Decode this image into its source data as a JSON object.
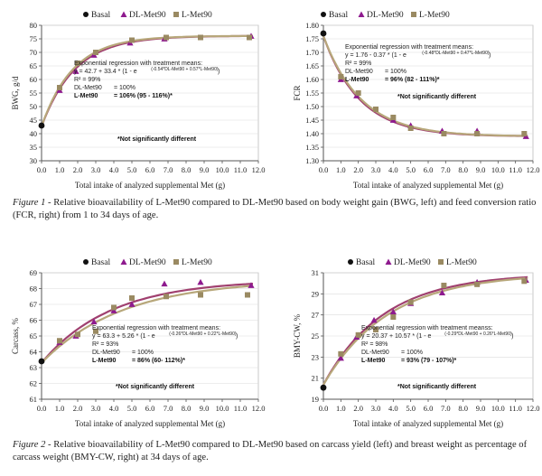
{
  "legend": [
    "Basal",
    "DL-Met90",
    "L-Met90"
  ],
  "colors": {
    "basal": "#111111",
    "dl": "#8e1a8e",
    "l": "#9a8a62",
    "curve": "#a0406f",
    "curve2": "#b7a77a",
    "grid": "#dcdcdc",
    "axis": "#555555"
  },
  "shared_xlabel": "Total intake of analyzed supplemental Met (g)",
  "figure1_caption": {
    "label": "Figure 1",
    "text": " - Relative bioavailability of L-Met90 compared to DL-Met90 based on body weight gain (BWG, left) and feed conversion ratio (FCR, right) from 1 to 34 days of age."
  },
  "figure2_caption": {
    "label": "Figure 2",
    "text": " - Relative bioavailability of L-Met90 compared to DL-Met90 based on carcass yield (left) and breast weight as percentage of carcass weight (BMY-CW, right) at 34 days of age."
  },
  "chart_data": [
    {
      "type": "scatter",
      "ylabel": "BWG, g/d",
      "xlabel": "Total intake of analyzed supplemental Met (g)",
      "xlim": [
        0,
        12
      ],
      "ylim": [
        30,
        80
      ],
      "xticks": [
        "0.0",
        "1.0",
        "2.0",
        "3.0",
        "4.0",
        "5.0",
        "6.0",
        "7.0",
        "8.0",
        "9.0",
        "10.0",
        "11.0",
        "12.0"
      ],
      "yticks": [
        "30",
        "35",
        "40",
        "45",
        "50",
        "55",
        "60",
        "65",
        "70",
        "75",
        "80"
      ],
      "model": {
        "a": 42.7,
        "b": 33.4,
        "k": 0.54,
        "rel": 1.06
      },
      "series": [
        {
          "name": "Basal",
          "points": [
            [
              0,
              43
            ]
          ]
        },
        {
          "name": "DL-Met90",
          "points": [
            [
              1.0,
              56
            ],
            [
              1.9,
              63
            ],
            [
              2.9,
              69
            ],
            [
              4.9,
              73.5
            ],
            [
              6.8,
              75
            ],
            [
              11.6,
              76
            ]
          ]
        },
        {
          "name": "L-Met90",
          "points": [
            [
              1.0,
              57
            ],
            [
              2.0,
              66
            ],
            [
              3.0,
              70
            ],
            [
              5.0,
              74.5
            ],
            [
              6.9,
              75.5
            ],
            [
              8.8,
              75.5
            ],
            [
              11.5,
              75.5
            ]
          ]
        }
      ],
      "equation": {
        "title": "Exponential regression with treatment means:",
        "line1": "y = 42.7 + 33.4 * (1 - e",
        "exp1": "(-0.54*DL-Met90 + 0.57*L-Met90)",
        "close1": ")",
        "r2": "R² = 99%",
        "dl_label": "DL-Met90",
        "dl_val": "= 100%",
        "l_label": "L-Met90",
        "l_val": "= 106% (95 - 116%)*",
        "note": "*Not significantly different"
      }
    },
    {
      "type": "scatter",
      "ylabel": "FCR",
      "xlabel": "Total intake of analyzed supplemental Met (g)",
      "xlim": [
        0,
        12
      ],
      "ylim": [
        1.3,
        1.8
      ],
      "xticks": [
        "0.0",
        "1.0",
        "2.0",
        "3.0",
        "4.0",
        "5.0",
        "6.0",
        "7.0",
        "8.0",
        "9.0",
        "10.0",
        "11.0",
        "12.0"
      ],
      "yticks": [
        "1.30",
        "1.35",
        "1.40",
        "1.45",
        "1.50",
        "1.55",
        "1.60",
        "1.65",
        "1.70",
        "1.75",
        "1.80"
      ],
      "model": {
        "a": 1.76,
        "b": -0.37,
        "k": 0.48,
        "rel": 0.96
      },
      "series": [
        {
          "name": "Basal",
          "points": [
            [
              0,
              1.77
            ]
          ]
        },
        {
          "name": "DL-Met90",
          "points": [
            [
              1.0,
              1.6
            ],
            [
              1.9,
              1.54
            ],
            [
              4.0,
              1.45
            ],
            [
              5.0,
              1.43
            ],
            [
              6.8,
              1.41
            ],
            [
              8.8,
              1.41
            ],
            [
              11.6,
              1.39
            ]
          ]
        },
        {
          "name": "L-Met90",
          "points": [
            [
              1.0,
              1.61
            ],
            [
              2.0,
              1.55
            ],
            [
              3.0,
              1.49
            ],
            [
              4.0,
              1.46
            ],
            [
              5.0,
              1.42
            ],
            [
              6.9,
              1.4
            ],
            [
              8.8,
              1.4
            ],
            [
              11.5,
              1.4
            ]
          ]
        }
      ],
      "equation": {
        "title": "Exponential regression with treatment means:",
        "line1": "y = 1.76 - 0.37 * (1 - e",
        "exp1": "(-0.48*DL-Met90 + 0.47*L-Met90)",
        "close1": ")",
        "r2": "R² = 99%",
        "dl_label": "DL-Met90",
        "dl_val": "= 100%",
        "l_label": "L-Met90",
        "l_val": "= 96% (82 - 111%)*",
        "note": "*Not significantly different"
      }
    },
    {
      "type": "scatter",
      "ylabel": "Carcass, %",
      "xlabel": "Total intake of analyzed supplemental Met (g)",
      "xlim": [
        0,
        12
      ],
      "ylim": [
        61,
        69
      ],
      "xticks": [
        "0.0",
        "1.0",
        "2.0",
        "3.0",
        "4.0",
        "5.0",
        "6.0",
        "7.0",
        "8.0",
        "9.0",
        "10.0",
        "11.0",
        "12.0"
      ],
      "yticks": [
        "61",
        "62",
        "63",
        "64",
        "65",
        "66",
        "67",
        "68",
        "69"
      ],
      "model": {
        "a": 63.3,
        "b": 5.26,
        "k": 0.26,
        "rel": 0.86
      },
      "series": [
        {
          "name": "Basal",
          "points": [
            [
              0,
              63.4
            ]
          ]
        },
        {
          "name": "DL-Met90",
          "points": [
            [
              1.0,
              64.6
            ],
            [
              1.9,
              65.0
            ],
            [
              2.9,
              65.9
            ],
            [
              4.0,
              66.6
            ],
            [
              5.0,
              67.0
            ],
            [
              6.8,
              68.3
            ],
            [
              8.8,
              68.4
            ],
            [
              11.6,
              68.2
            ]
          ]
        },
        {
          "name": "L-Met90",
          "points": [
            [
              1.0,
              64.7
            ],
            [
              2.0,
              65.1
            ],
            [
              3.0,
              65.3
            ],
            [
              4.0,
              66.8
            ],
            [
              5.0,
              67.4
            ],
            [
              6.9,
              67.5
            ],
            [
              8.8,
              67.6
            ],
            [
              11.4,
              67.6
            ]
          ]
        }
      ],
      "equation": {
        "title": "Exponential regression with treatment means:",
        "line1": "y = 63.3 + 5.26 * (1 - e",
        "exp1": "(-0.26*DL-Met90 + 0.22*L-Met90)",
        "close1": ")",
        "r2": "R² = 93%",
        "dl_label": "DL-Met90",
        "dl_val": "= 100%",
        "l_label": "L-Met90",
        "l_val": "= 86% (60- 112%)*",
        "note": "*Not significantly different"
      }
    },
    {
      "type": "scatter",
      "ylabel": "BMY-CW, %",
      "xlabel": "Total intake of analyzed supplemental Met (g)",
      "xlim": [
        0,
        12
      ],
      "ylim": [
        19,
        31
      ],
      "xticks": [
        "0.0",
        "1.0",
        "2.0",
        "3.0",
        "4.0",
        "5.0",
        "6.0",
        "7.0",
        "8.0",
        "9.0",
        "10.0",
        "11.0",
        "12.0"
      ],
      "yticks": [
        "19",
        "21",
        "23",
        "25",
        "27",
        "29",
        "31"
      ],
      "model": {
        "a": 20.37,
        "b": 10.57,
        "k": 0.29,
        "rel": 0.93
      },
      "series": [
        {
          "name": "Basal",
          "points": [
            [
              0,
              20.1
            ]
          ]
        },
        {
          "name": "DL-Met90",
          "points": [
            [
              1.0,
              22.9
            ],
            [
              1.9,
              24.9
            ],
            [
              2.9,
              26.5
            ],
            [
              4.0,
              27.3
            ],
            [
              5.0,
              28.1
            ],
            [
              6.8,
              29.1
            ],
            [
              8.8,
              30.1
            ],
            [
              11.6,
              30.3
            ]
          ]
        },
        {
          "name": "L-Met90",
          "points": [
            [
              1.0,
              23.3
            ],
            [
              2.0,
              25.1
            ],
            [
              3.0,
              25.6
            ],
            [
              4.0,
              26.8
            ],
            [
              5.0,
              28.2
            ],
            [
              6.9,
              29.8
            ],
            [
              8.8,
              29.9
            ],
            [
              11.5,
              30.2
            ]
          ]
        }
      ],
      "equation": {
        "title": "Exponential regression with treatment meanss:",
        "line1": "y = 20.37 + 10.57 * (1 - e",
        "exp1": "(-0.29*DL-Met90 + 0.26*L-Met90)",
        "close1": ")",
        "r2": "R² = 98%",
        "dl_label": "DL-Met90",
        "dl_val": "= 100%",
        "l_label": "L-Met90",
        "l_val": "= 93% (79 - 107%)*",
        "note": "*Not significantly different"
      }
    }
  ]
}
